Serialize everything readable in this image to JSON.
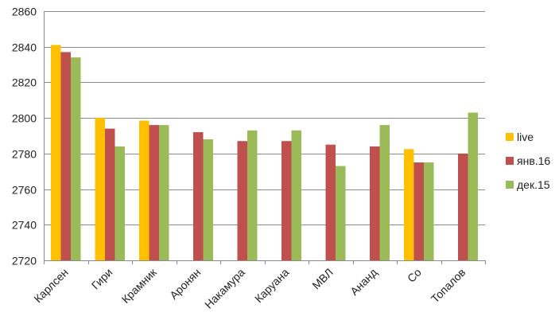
{
  "chart_data": {
    "type": "bar",
    "title": "",
    "xlabel": "",
    "ylabel": "",
    "ylim": [
      2720,
      2860
    ],
    "yticks": [
      2720,
      2740,
      2760,
      2780,
      2800,
      2820,
      2840,
      2860
    ],
    "grid": true,
    "legend_position": "right",
    "categories": [
      "Карлсен",
      "Гири",
      "Крамник",
      "Аронян",
      "Накамура",
      "Каруана",
      "МВЛ",
      "Ананд",
      "Со",
      "Топалов"
    ],
    "series": [
      {
        "name": "live",
        "color": "#ffc000",
        "values": [
          2841,
          2800,
          2798.5,
          null,
          null,
          null,
          null,
          null,
          2782.5,
          null
        ]
      },
      {
        "name": "янв.16",
        "color": "#c0504d",
        "values": [
          2837,
          2794,
          2796,
          2792,
          2787,
          2787,
          2785,
          2784,
          2775,
          2780
        ]
      },
      {
        "name": "дек.15",
        "color": "#9bbb59",
        "values": [
          2834,
          2784,
          2796,
          2788,
          2793,
          2793,
          2773,
          2796,
          2775,
          2803
        ]
      }
    ]
  }
}
